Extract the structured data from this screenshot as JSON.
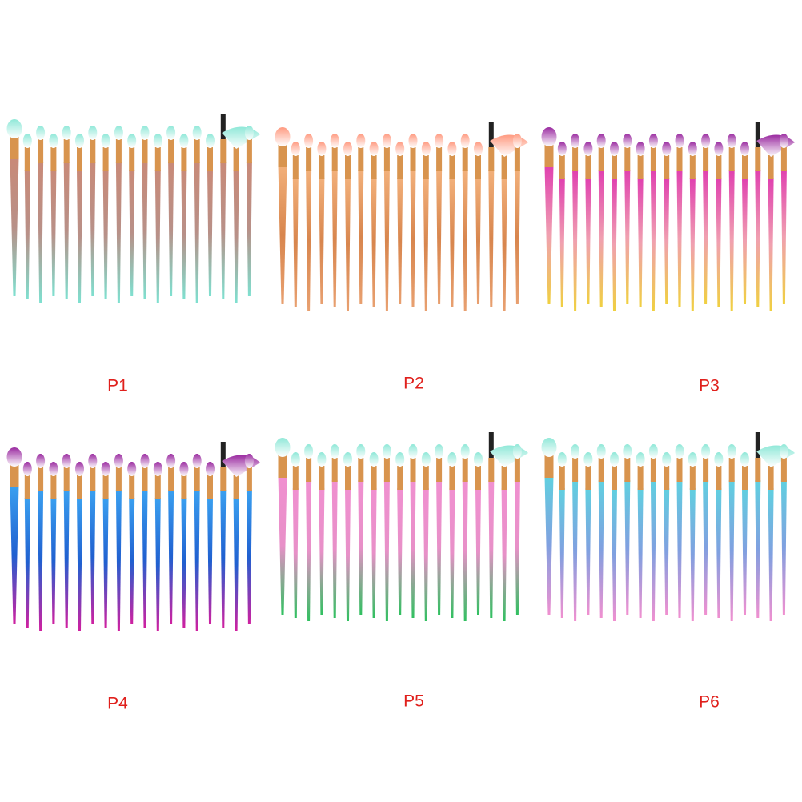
{
  "panels": [
    {
      "label": "P1"
    },
    {
      "label": "P2"
    },
    {
      "label": "P3"
    },
    {
      "label": "P4"
    },
    {
      "label": "P5"
    },
    {
      "label": "P6"
    }
  ]
}
